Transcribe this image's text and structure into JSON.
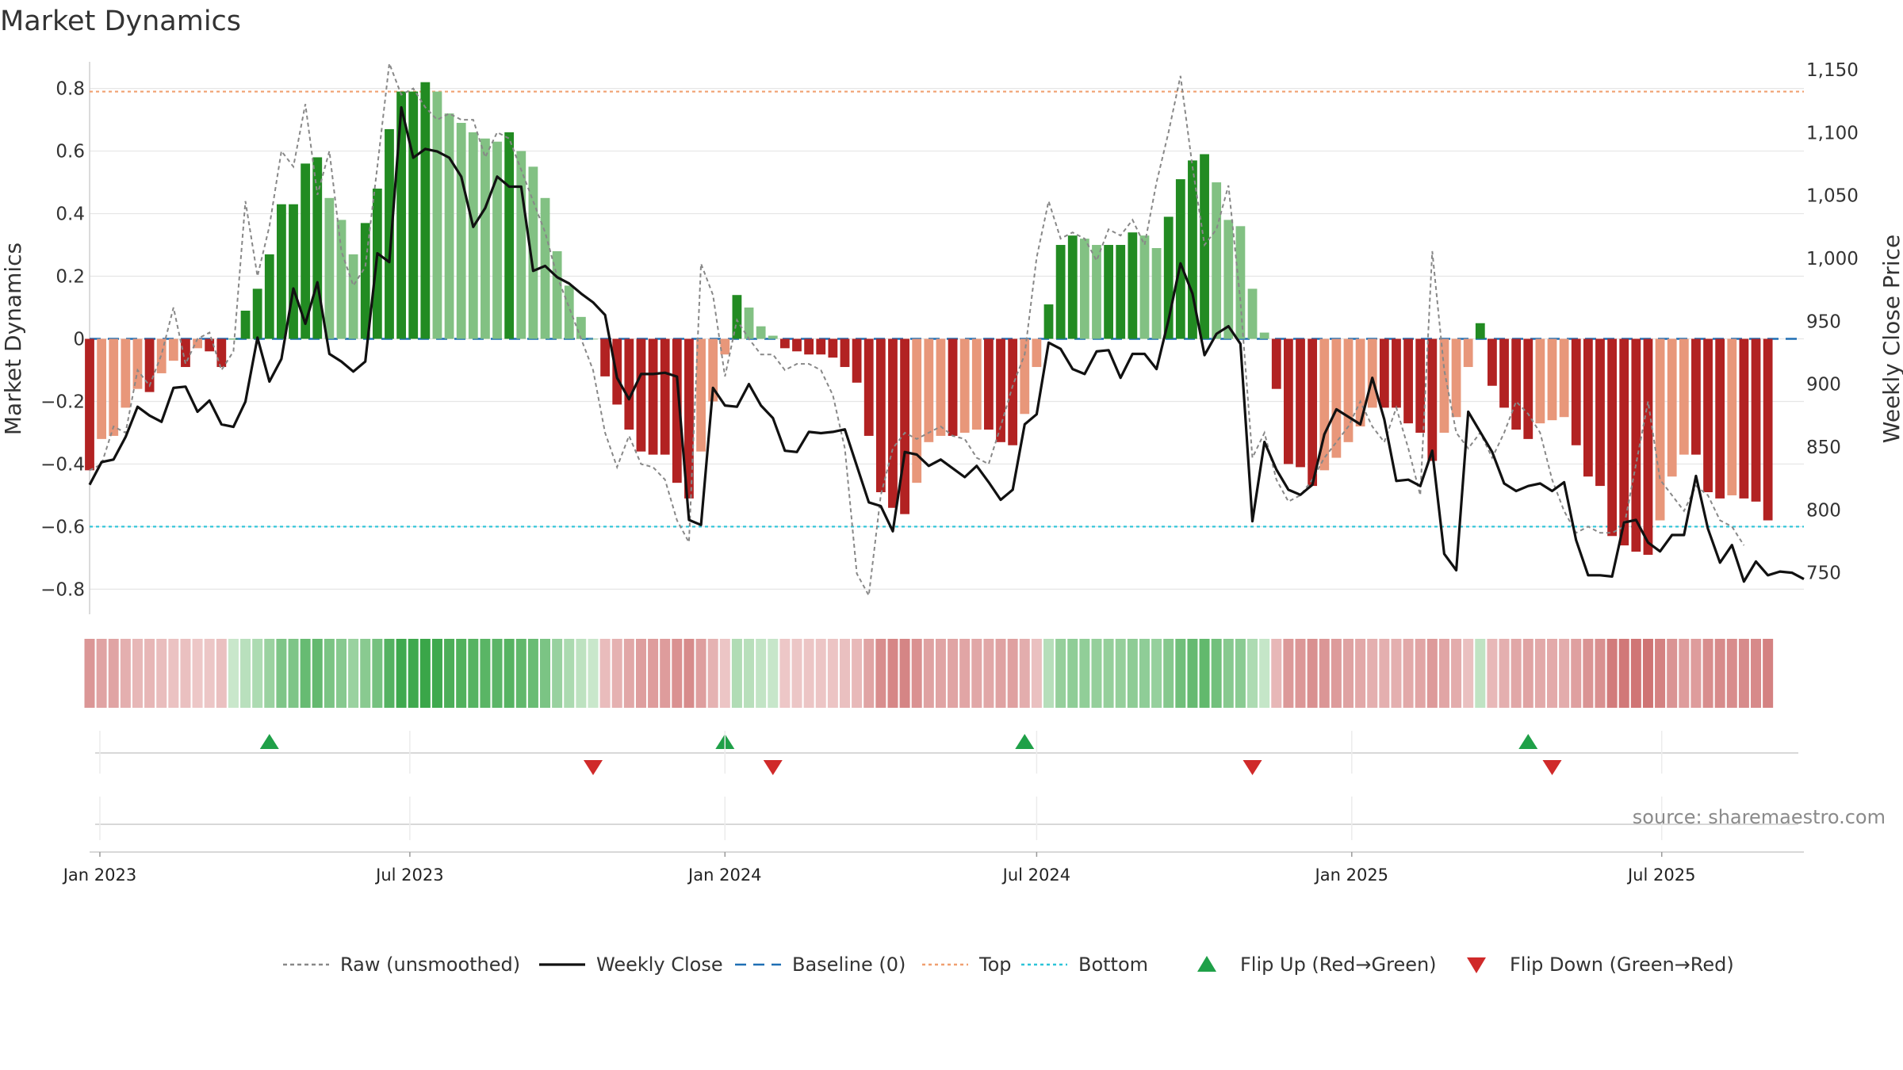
{
  "chart_data": {
    "type": "bar",
    "title": "Market Dynamics",
    "ylabel_left": "Market Dynamics",
    "ylabel_right": "Weekly Close Price",
    "source": "source: sharemaestro.com",
    "left_axis": {
      "range": [
        -0.88,
        0.88
      ],
      "ticks": [
        -0.8,
        -0.6,
        -0.4,
        -0.2,
        0,
        0.2,
        0.4,
        0.6,
        0.8
      ],
      "tick_labels": [
        "−0.8",
        "−0.6",
        "−0.4",
        "−0.2",
        "0",
        "0.2",
        "0.4",
        "0.6",
        "0.8"
      ]
    },
    "right_axis": {
      "range": [
        717,
        1155
      ],
      "ticks": [
        750,
        800,
        850,
        900,
        950,
        1000,
        1050,
        1100,
        1150
      ],
      "tick_labels": [
        "750",
        "800",
        "850",
        "900",
        "950",
        "1,000",
        "1,050",
        "1,100",
        "1,150"
      ]
    },
    "x_axis": {
      "start": "2022-12-26",
      "end": "2025-09-22",
      "ticks": [
        {
          "date": "2023-01-01",
          "label": "Jan 2023"
        },
        {
          "date": "2023-07-01",
          "label": "Jul 2023"
        },
        {
          "date": "2024-01-01",
          "label": "Jan 2024"
        },
        {
          "date": "2024-07-01",
          "label": "Jul 2024"
        },
        {
          "date": "2025-01-01",
          "label": "Jan 2025"
        },
        {
          "date": "2025-07-01",
          "label": "Jul 2025"
        }
      ]
    },
    "reference_lines": {
      "top": 0.79,
      "bottom": -0.6,
      "baseline": 0
    },
    "series": [
      {
        "name": "Market Dynamics (bars)",
        "start_date": "2022-12-26",
        "frequency": "weekly",
        "values": [
          -0.42,
          -0.32,
          -0.31,
          -0.22,
          -0.16,
          -0.17,
          -0.11,
          -0.07,
          -0.09,
          -0.03,
          -0.04,
          -0.09,
          0.0,
          0.09,
          0.16,
          0.27,
          0.43,
          0.43,
          0.56,
          0.58,
          0.45,
          0.38,
          0.27,
          0.37,
          0.48,
          0.67,
          0.79,
          0.79,
          0.82,
          0.79,
          0.72,
          0.69,
          0.66,
          0.64,
          0.63,
          0.66,
          0.6,
          0.55,
          0.45,
          0.28,
          0.17,
          0.07,
          0.0,
          -0.12,
          -0.21,
          -0.29,
          -0.36,
          -0.37,
          -0.37,
          -0.46,
          -0.51,
          -0.36,
          -0.2,
          -0.05,
          0.14,
          0.1,
          0.04,
          0.01,
          -0.03,
          -0.04,
          -0.05,
          -0.05,
          -0.06,
          -0.09,
          -0.14,
          -0.31,
          -0.49,
          -0.54,
          -0.56,
          -0.46,
          -0.33,
          -0.31,
          -0.31,
          -0.3,
          -0.29,
          -0.29,
          -0.33,
          -0.34,
          -0.24,
          -0.09,
          0.11,
          0.3,
          0.33,
          0.32,
          0.3,
          0.3,
          0.3,
          0.34,
          0.33,
          0.29,
          0.39,
          0.51,
          0.57,
          0.59,
          0.5,
          0.38,
          0.36,
          0.16,
          0.02,
          -0.16,
          -0.4,
          -0.41,
          -0.47,
          -0.42,
          -0.38,
          -0.33,
          -0.28,
          -0.22,
          -0.22,
          -0.22,
          -0.27,
          -0.3,
          -0.39,
          -0.3,
          -0.25,
          -0.09,
          0.05,
          -0.15,
          -0.22,
          -0.29,
          -0.32,
          -0.27,
          -0.26,
          -0.25,
          -0.34,
          -0.44,
          -0.47,
          -0.63,
          -0.66,
          -0.68,
          -0.69,
          -0.58,
          -0.44,
          -0.37,
          -0.37,
          -0.49,
          -0.51,
          -0.5,
          -0.51,
          -0.52,
          -0.58
        ]
      },
      {
        "name": "Weekly Close",
        "start_date": "2022-12-26",
        "frequency": "weekly",
        "values": [
          820,
          838,
          840,
          858,
          882,
          875,
          870,
          897,
          898,
          878,
          887,
          868,
          866,
          886,
          937,
          902,
          920,
          976,
          948,
          981,
          924,
          918,
          910,
          918,
          1004,
          997,
          1120,
          1080,
          1087,
          1085,
          1080,
          1065,
          1025,
          1040,
          1065,
          1057,
          1057,
          990,
          994,
          985,
          980,
          972,
          965,
          955,
          905,
          888,
          908,
          908,
          909,
          906,
          792,
          788,
          897,
          883,
          882,
          900,
          883,
          873,
          847,
          846,
          862,
          861,
          862,
          864,
          835,
          806,
          803,
          783,
          846,
          844,
          835,
          840,
          833,
          826,
          835,
          822,
          808,
          816,
          868,
          876,
          933,
          928,
          912,
          908,
          926,
          927,
          905,
          924,
          924,
          912,
          951,
          996,
          972,
          923,
          940,
          946,
          932,
          791,
          854,
          832,
          816,
          812,
          820,
          860,
          880,
          874,
          868,
          905,
          872,
          823,
          824,
          819,
          847,
          765,
          752,
          878,
          862,
          846,
          821,
          815,
          819,
          821,
          815,
          822,
          776,
          748,
          748,
          747,
          790,
          792,
          774,
          767,
          780,
          780,
          827,
          785,
          758,
          772,
          743,
          759,
          748,
          751,
          750,
          745
        ]
      },
      {
        "name": "Raw (unsmoothed)",
        "start_date": "2022-12-26",
        "frequency": "weekly",
        "values": [
          -0.42,
          -0.4,
          -0.28,
          -0.3,
          -0.1,
          -0.15,
          -0.05,
          0.1,
          -0.08,
          0.0,
          0.02,
          -0.1,
          -0.04,
          0.44,
          0.2,
          0.36,
          0.6,
          0.55,
          0.75,
          0.46,
          0.6,
          0.28,
          0.17,
          0.23,
          0.55,
          0.88,
          0.78,
          0.8,
          0.74,
          0.7,
          0.72,
          0.7,
          0.7,
          0.58,
          0.66,
          0.64,
          0.54,
          0.44,
          0.34,
          0.2,
          0.1,
          0.0,
          -0.1,
          -0.3,
          -0.41,
          -0.31,
          -0.4,
          -0.41,
          -0.45,
          -0.58,
          -0.65,
          0.24,
          0.14,
          -0.12,
          0.06,
          0.0,
          -0.05,
          -0.05,
          -0.1,
          -0.08,
          -0.08,
          -0.1,
          -0.18,
          -0.35,
          -0.75,
          -0.82,
          -0.5,
          -0.35,
          -0.3,
          -0.32,
          -0.3,
          -0.28,
          -0.31,
          -0.32,
          -0.38,
          -0.4,
          -0.28,
          -0.15,
          -0.05,
          0.26,
          0.44,
          0.32,
          0.34,
          0.32,
          0.25,
          0.35,
          0.33,
          0.38,
          0.3,
          0.5,
          0.66,
          0.84,
          0.55,
          0.3,
          0.35,
          0.49,
          0.12,
          -0.38,
          -0.3,
          -0.45,
          -0.52,
          -0.5,
          -0.45,
          -0.38,
          -0.33,
          -0.28,
          -0.2,
          -0.28,
          -0.33,
          -0.22,
          -0.35,
          -0.5,
          0.28,
          -0.1,
          -0.3,
          -0.35,
          -0.3,
          -0.38,
          -0.3,
          -0.2,
          -0.24,
          -0.3,
          -0.45,
          -0.55,
          -0.62,
          -0.6,
          -0.62,
          -0.62,
          -0.6,
          -0.4,
          -0.2,
          -0.45,
          -0.5,
          -0.55,
          -0.47,
          -0.5,
          -0.58,
          -0.6,
          -0.66
        ]
      },
      {
        "name": "Baseline (0)"
      },
      {
        "name": "Top"
      },
      {
        "name": "Bottom"
      },
      {
        "name": "Flip Up (Red→Green)",
        "dates": [
          "2023-04-10",
          "2024-01-01",
          "2024-06-24",
          "2025-04-14"
        ]
      },
      {
        "name": "Flip Down (Green→Red)",
        "dates": [
          "2023-10-16",
          "2024-01-29",
          "2024-11-04",
          "2025-04-28"
        ]
      }
    ],
    "legend": {
      "placement": "bottom",
      "items": [
        {
          "label": "Raw (unsmoothed)",
          "kind": "dashed-line",
          "color": "#888888"
        },
        {
          "label": "Weekly Close",
          "kind": "line",
          "color": "#111111"
        },
        {
          "label": "Baseline (0)",
          "kind": "dashed-line",
          "color": "#1f6fb4"
        },
        {
          "label": "Top",
          "kind": "dotted-line",
          "color": "#f0a070"
        },
        {
          "label": "Bottom",
          "kind": "dotted-line",
          "color": "#2cc4d8"
        },
        {
          "label": "Flip Up (Red→Green)",
          "kind": "triangle-up",
          "color": "#1fa048"
        },
        {
          "label": "Flip Down (Green→Red)",
          "kind": "triangle-down",
          "color": "#d02a2a"
        }
      ]
    },
    "colors": {
      "strong_green": "#228b22",
      "light_green": "#82c183",
      "strong_red": "#b22222",
      "light_red": "#e8977a",
      "raw_line": "#888888",
      "close_line": "#111111",
      "baseline": "#1f6fb4",
      "top_line": "#f0a070",
      "bottom_line": "#2cc4d8",
      "flip_up": "#1fa048",
      "flip_down": "#d02a2a"
    },
    "grid": true
  }
}
